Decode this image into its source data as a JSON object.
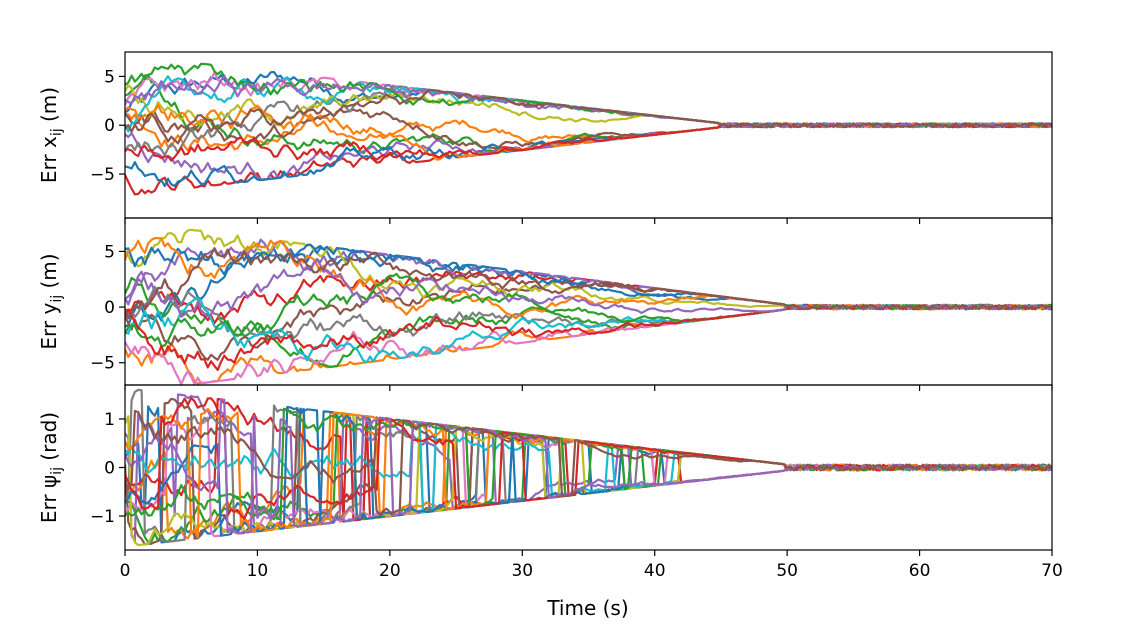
{
  "chart_data": {
    "type": "line",
    "layout": "three vertically stacked panels sharing the x axis",
    "xlabel": "Time (s)",
    "xlim": [
      0,
      70
    ],
    "xticks": [
      0,
      10,
      20,
      30,
      40,
      50,
      60,
      70
    ],
    "grid": false,
    "legend": "none",
    "series_count_per_panel": 16,
    "series_colors": [
      "#1f77b4",
      "#ff7f0e",
      "#2ca02c",
      "#d62728",
      "#9467bd",
      "#8c564b",
      "#e377c2",
      "#7f7f7f",
      "#bcbd22",
      "#17becf"
    ],
    "panels": [
      {
        "ylabel_main": "Err x",
        "ylabel_sub": "ij",
        "ylabel_unit": " (m)",
        "ylim": [
          -9.5,
          7.5
        ],
        "yticks": [
          {
            "value": 5,
            "label": "5"
          },
          {
            "value": 0,
            "label": "0"
          },
          {
            "value": -5,
            "label": "−5"
          }
        ],
        "converge_time": 45,
        "noise_end": 0.2,
        "max_abs": 7,
        "switching": false
      },
      {
        "ylabel_main": "Err y",
        "ylabel_sub": "ij",
        "ylabel_unit": " (m)",
        "ylim": [
          -7,
          8
        ],
        "yticks": [
          {
            "value": 5,
            "label": "5"
          },
          {
            "value": 0,
            "label": "0"
          },
          {
            "value": -5,
            "label": "−5"
          }
        ],
        "converge_time": 50,
        "noise_end": 0.2,
        "max_abs": 7.5,
        "switching": false
      },
      {
        "ylabel_main": "Err ψ",
        "ylabel_sub": "ij",
        "ylabel_unit": " (rad)",
        "ylim": [
          -1.7,
          1.7
        ],
        "yticks": [
          {
            "value": 1,
            "label": "1"
          },
          {
            "value": 0,
            "label": "0"
          },
          {
            "value": -1,
            "label": "−1"
          }
        ],
        "converge_time": 50,
        "noise_end": 0.06,
        "max_abs": 1.57,
        "switching": true
      }
    ]
  }
}
